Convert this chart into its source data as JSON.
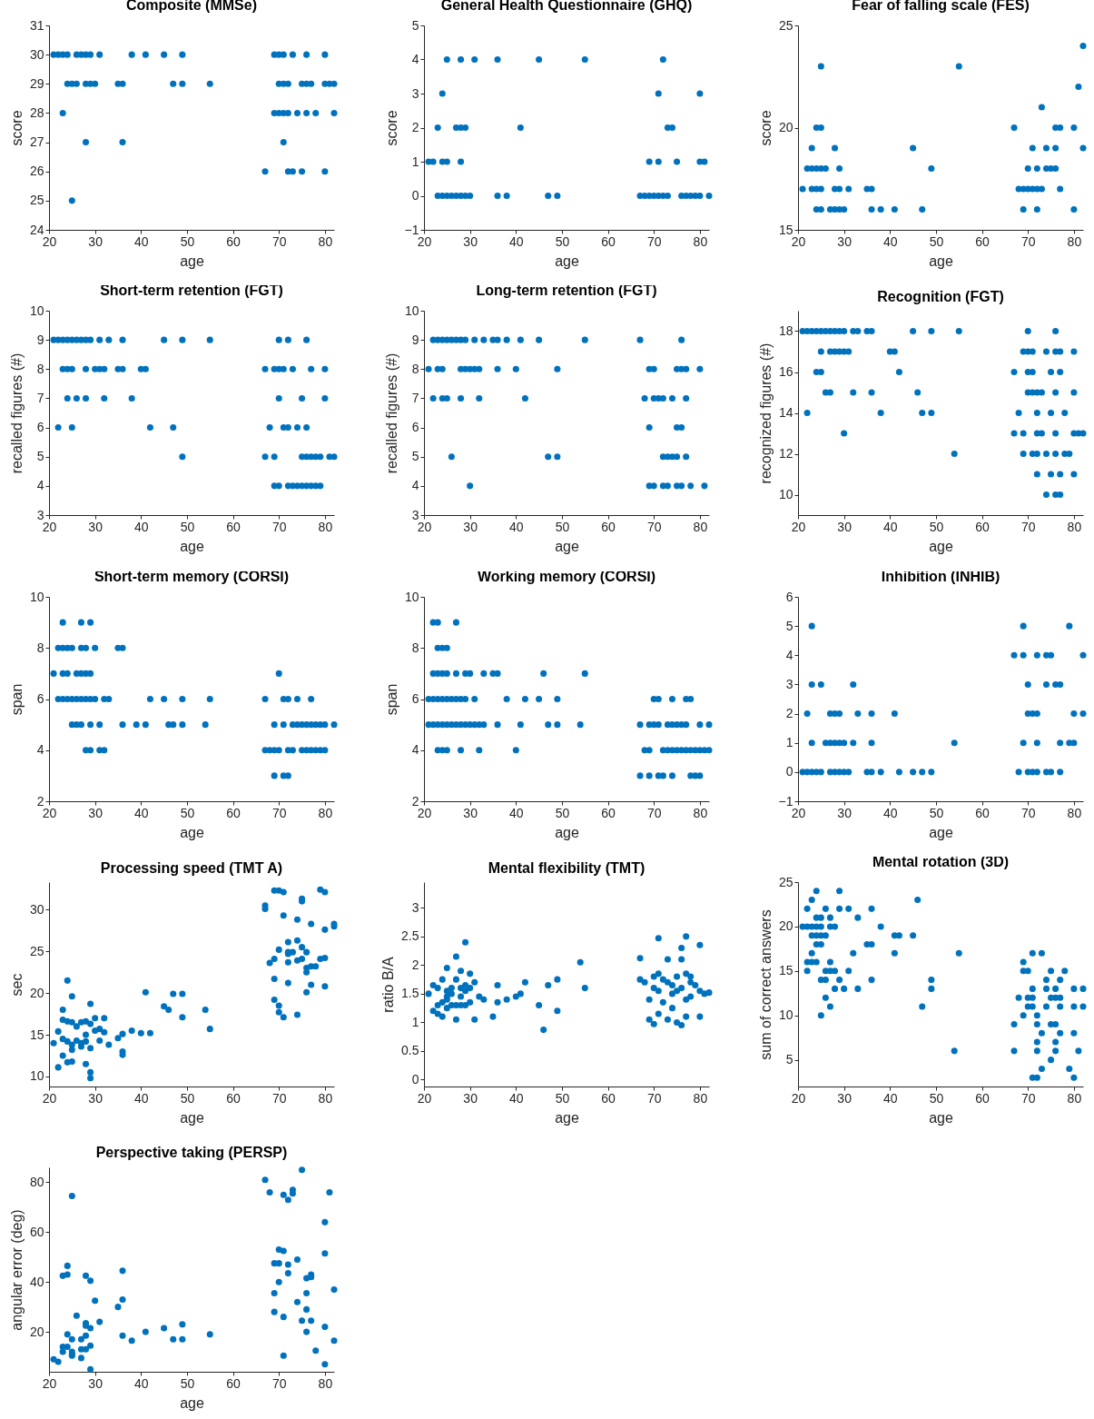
{
  "chart_data": [
    {
      "type": "scatter",
      "title": "Composite (MMSe)",
      "xlabel": "age",
      "ylabel": "score",
      "color": "#0072bd",
      "marker": "circle",
      "xlim": [
        20,
        82
      ],
      "xticks": [
        20,
        30,
        40,
        50,
        60,
        70,
        80
      ],
      "ylim": [
        24,
        31
      ],
      "yticks": [
        24,
        25,
        26,
        27,
        28,
        29,
        30,
        31
      ],
      "x": [
        21,
        22,
        23,
        24,
        26,
        27,
        28,
        29,
        31,
        38,
        41,
        45,
        49,
        69,
        70,
        71,
        73,
        76,
        80,
        24,
        25,
        26,
        28,
        29,
        30,
        35,
        36,
        47,
        49,
        55,
        70,
        71,
        72,
        75,
        76,
        77,
        80,
        81,
        82,
        23,
        69,
        70,
        71,
        72,
        74,
        76,
        78,
        82,
        28,
        36,
        71,
        67,
        72,
        73,
        75,
        80,
        25
      ],
      "values": [
        30,
        30,
        30,
        30,
        30,
        30,
        30,
        30,
        30,
        30,
        30,
        30,
        30,
        30,
        30,
        30,
        30,
        30,
        30,
        29,
        29,
        29,
        29,
        29,
        29,
        29,
        29,
        29,
        29,
        29,
        29,
        29,
        29,
        29,
        29,
        29,
        29,
        29,
        29,
        28,
        28,
        28,
        28,
        28,
        28,
        28,
        28,
        28,
        27,
        27,
        27,
        26,
        26,
        26,
        26,
        26,
        25
      ]
    },
    {
      "type": "scatter",
      "title": "General Health Questionnaire (GHQ)",
      "xlabel": "age",
      "ylabel": "score",
      "color": "#0072bd",
      "marker": "circle",
      "xlim": [
        20,
        82
      ],
      "xticks": [
        20,
        30,
        40,
        50,
        60,
        70,
        80
      ],
      "ylim": [
        -1,
        5
      ],
      "yticks": [
        -1,
        0,
        1,
        2,
        3,
        4,
        5
      ],
      "x": [
        25,
        28,
        31,
        36,
        45,
        55,
        72,
        24,
        71,
        80,
        23,
        27,
        28,
        29,
        41,
        73,
        74,
        21,
        22,
        24,
        25,
        28,
        69,
        71,
        75,
        80,
        81,
        23,
        24,
        25,
        26,
        27,
        28,
        29,
        30,
        36,
        38,
        47,
        49,
        67,
        68,
        69,
        70,
        71,
        72,
        73,
        76,
        77,
        78,
        79,
        80,
        82
      ],
      "values": [
        4,
        4,
        4,
        4,
        4,
        4,
        4,
        3,
        3,
        3,
        2,
        2,
        2,
        2,
        2,
        2,
        2,
        1,
        1,
        1,
        1,
        1,
        1,
        1,
        1,
        1,
        1,
        0,
        0,
        0,
        0,
        0,
        0,
        0,
        0,
        0,
        0,
        0,
        0,
        0,
        0,
        0,
        0,
        0,
        0,
        0,
        0,
        0,
        0,
        0,
        0,
        0
      ]
    },
    {
      "type": "scatter",
      "title": "Fear of falling scale (FES)",
      "xlabel": "age",
      "ylabel": "score",
      "color": "#0072bd",
      "marker": "circle",
      "xlim": [
        20,
        82
      ],
      "xticks": [
        20,
        30,
        40,
        50,
        60,
        70,
        80
      ],
      "ylim": [
        15,
        25
      ],
      "yticks": [
        15,
        20,
        25
      ],
      "x": [
        82,
        25,
        55,
        81,
        73,
        24,
        25,
        67,
        76,
        77,
        80,
        23,
        28,
        45,
        71,
        74,
        76,
        82,
        22,
        23,
        24,
        25,
        26,
        29,
        49,
        70,
        72,
        74,
        75,
        76,
        21,
        23,
        24,
        25,
        28,
        29,
        31,
        35,
        36,
        68,
        69,
        70,
        71,
        72,
        73,
        77,
        24,
        25,
        27,
        28,
        29,
        30,
        36,
        38,
        41,
        47,
        69,
        72,
        80
      ],
      "values": [
        24,
        23,
        23,
        22,
        21,
        20,
        20,
        20,
        20,
        20,
        20,
        19,
        19,
        19,
        19,
        19,
        19,
        19,
        18,
        18,
        18,
        18,
        18,
        18,
        18,
        18,
        18,
        18,
        18,
        18,
        17,
        17,
        17,
        17,
        17,
        17,
        17,
        17,
        17,
        17,
        17,
        17,
        17,
        17,
        17,
        17,
        16,
        16,
        16,
        16,
        16,
        16,
        16,
        16,
        16,
        16,
        16,
        16,
        16
      ]
    },
    {
      "type": "scatter",
      "title": "Short-term retention (FGT)",
      "xlabel": "age",
      "ylabel": "recalled figures (#)",
      "color": "#0072bd",
      "marker": "circle",
      "xlim": [
        20,
        82
      ],
      "xticks": [
        20,
        30,
        40,
        50,
        60,
        70,
        80
      ],
      "ylim": [
        3,
        10
      ],
      "yticks": [
        3,
        4,
        5,
        6,
        7,
        8,
        9,
        10
      ],
      "x": [
        21,
        22,
        23,
        24,
        25,
        26,
        27,
        28,
        29,
        31,
        33,
        36,
        45,
        49,
        55,
        70,
        72,
        76,
        23,
        24,
        25,
        28,
        30,
        31,
        32,
        35,
        36,
        40,
        41,
        67,
        69,
        70,
        71,
        73,
        77,
        80,
        24,
        26,
        28,
        32,
        38,
        70,
        75,
        80,
        22,
        25,
        42,
        47,
        68,
        71,
        72,
        74,
        76,
        49,
        67,
        69,
        75,
        76,
        77,
        78,
        79,
        81,
        82,
        69,
        70,
        72,
        73,
        74,
        75,
        76,
        77,
        78,
        79
      ],
      "values": [
        9,
        9,
        9,
        9,
        9,
        9,
        9,
        9,
        9,
        9,
        9,
        9,
        9,
        9,
        9,
        9,
        9,
        9,
        8,
        8,
        8,
        8,
        8,
        8,
        8,
        8,
        8,
        8,
        8,
        8,
        8,
        8,
        8,
        8,
        8,
        8,
        7,
        7,
        7,
        7,
        7,
        7,
        7,
        7,
        6,
        6,
        6,
        6,
        6,
        6,
        6,
        6,
        6,
        5,
        5,
        5,
        5,
        5,
        5,
        5,
        5,
        5,
        5,
        4,
        4,
        4,
        4,
        4,
        4,
        4,
        4,
        4,
        4
      ]
    },
    {
      "type": "scatter",
      "title": "Long-term retention (FGT)",
      "xlabel": "age",
      "ylabel": "recalled figures (#)",
      "color": "#0072bd",
      "marker": "circle",
      "xlim": [
        20,
        82
      ],
      "xticks": [
        20,
        30,
        40,
        50,
        60,
        70,
        80
      ],
      "ylim": [
        3,
        10
      ],
      "yticks": [
        3,
        4,
        5,
        6,
        7,
        8,
        9,
        10
      ],
      "x": [
        22,
        23,
        24,
        25,
        26,
        27,
        28,
        29,
        31,
        33,
        35,
        36,
        38,
        41,
        45,
        55,
        67,
        76,
        21,
        23,
        24,
        28,
        29,
        30,
        31,
        32,
        36,
        40,
        49,
        69,
        70,
        75,
        76,
        77,
        80,
        22,
        24,
        25,
        28,
        32,
        42,
        68,
        70,
        71,
        72,
        74,
        77,
        69,
        75,
        76,
        26,
        47,
        49,
        72,
        73,
        74,
        75,
        77,
        30,
        69,
        70,
        72,
        73,
        75,
        76,
        78,
        81
      ],
      "values": [
        9,
        9,
        9,
        9,
        9,
        9,
        9,
        9,
        9,
        9,
        9,
        9,
        9,
        9,
        9,
        9,
        9,
        9,
        8,
        8,
        8,
        8,
        8,
        8,
        8,
        8,
        8,
        8,
        8,
        8,
        8,
        8,
        8,
        8,
        8,
        7,
        7,
        7,
        7,
        7,
        7,
        7,
        7,
        7,
        7,
        7,
        7,
        6,
        6,
        6,
        5,
        5,
        5,
        5,
        5,
        5,
        5,
        5,
        4,
        4,
        4,
        4,
        4,
        4,
        4,
        4,
        4
      ]
    },
    {
      "type": "scatter",
      "title": "Recognition (FGT)",
      "xlabel": "age",
      "ylabel": "recognized figures (#)",
      "color": "#0072bd",
      "marker": "circle",
      "xlim": [
        20,
        82
      ],
      "xticks": [
        20,
        30,
        40,
        50,
        60,
        70,
        80
      ],
      "ylim": [
        9,
        19
      ],
      "yticks": [
        10,
        12,
        14,
        16,
        18
      ],
      "x": [
        21,
        22,
        23,
        24,
        25,
        26,
        27,
        28,
        29,
        30,
        32,
        33,
        35,
        36,
        45,
        49,
        55,
        70,
        76,
        25,
        27,
        28,
        29,
        30,
        31,
        40,
        41,
        69,
        70,
        71,
        74,
        76,
        77,
        80,
        24,
        25,
        42,
        67,
        70,
        71,
        75,
        77,
        26,
        27,
        32,
        36,
        46,
        70,
        71,
        72,
        73,
        76,
        80,
        22,
        38,
        47,
        49,
        68,
        72,
        75,
        78,
        30,
        67,
        69,
        72,
        73,
        76,
        80,
        81,
        82,
        54,
        69,
        71,
        72,
        74,
        76,
        78,
        79,
        72,
        75,
        77,
        80,
        74,
        76,
        77
      ],
      "values": [
        18,
        18,
        18,
        18,
        18,
        18,
        18,
        18,
        18,
        18,
        18,
        18,
        18,
        18,
        18,
        18,
        18,
        18,
        18,
        17,
        17,
        17,
        17,
        17,
        17,
        17,
        17,
        17,
        17,
        17,
        17,
        17,
        17,
        17,
        16,
        16,
        16,
        16,
        16,
        16,
        16,
        16,
        15,
        15,
        15,
        15,
        15,
        15,
        15,
        15,
        15,
        15,
        15,
        14,
        14,
        14,
        14,
        14,
        14,
        14,
        14,
        13,
        13,
        13,
        13,
        13,
        13,
        13,
        13,
        13,
        12,
        12,
        12,
        12,
        12,
        12,
        12,
        12,
        11,
        11,
        11,
        11,
        10,
        10,
        10
      ]
    },
    {
      "type": "scatter",
      "title": "Short-term memory (CORSI)",
      "xlabel": "age",
      "ylabel": "span",
      "color": "#0072bd",
      "marker": "circle",
      "xlim": [
        20,
        82
      ],
      "xticks": [
        20,
        30,
        40,
        50,
        60,
        70,
        80
      ],
      "ylim": [
        2,
        10
      ],
      "yticks": [
        2,
        4,
        6,
        8,
        10
      ],
      "x": [
        23,
        27,
        29,
        22,
        23,
        24,
        25,
        27,
        28,
        30,
        35,
        36,
        21,
        23,
        24,
        26,
        27,
        28,
        29,
        70,
        22,
        23,
        24,
        25,
        26,
        27,
        28,
        29,
        30,
        32,
        33,
        42,
        45,
        49,
        55,
        67,
        71,
        72,
        74,
        77,
        25,
        26,
        27,
        29,
        31,
        36,
        39,
        41,
        46,
        47,
        49,
        54,
        69,
        71,
        73,
        74,
        75,
        76,
        77,
        78,
        79,
        80,
        82,
        28,
        29,
        31,
        32,
        67,
        68,
        69,
        70,
        72,
        73,
        75,
        76,
        77,
        78,
        79,
        80,
        69,
        71,
        72
      ],
      "values": [
        9,
        9,
        9,
        8,
        8,
        8,
        8,
        8,
        8,
        8,
        8,
        8,
        7,
        7,
        7,
        7,
        7,
        7,
        7,
        7,
        6,
        6,
        6,
        6,
        6,
        6,
        6,
        6,
        6,
        6,
        6,
        6,
        6,
        6,
        6,
        6,
        6,
        6,
        6,
        6,
        5,
        5,
        5,
        5,
        5,
        5,
        5,
        5,
        5,
        5,
        5,
        5,
        5,
        5,
        5,
        5,
        5,
        5,
        5,
        5,
        5,
        5,
        5,
        4,
        4,
        4,
        4,
        4,
        4,
        4,
        4,
        4,
        4,
        4,
        4,
        4,
        4,
        4,
        4,
        3,
        3,
        3
      ]
    },
    {
      "type": "scatter",
      "title": "Working memory (CORSI)",
      "xlabel": "age",
      "ylabel": "span",
      "color": "#0072bd",
      "marker": "circle",
      "xlim": [
        20,
        82
      ],
      "xticks": [
        20,
        30,
        40,
        50,
        60,
        70,
        80
      ],
      "ylim": [
        2,
        10
      ],
      "yticks": [
        2,
        4,
        6,
        8,
        10
      ],
      "x": [
        22,
        23,
        27,
        23,
        24,
        25,
        22,
        23,
        24,
        25,
        27,
        29,
        30,
        33,
        35,
        36,
        46,
        55,
        21,
        22,
        23,
        24,
        25,
        26,
        27,
        28,
        29,
        31,
        38,
        42,
        45,
        49,
        70,
        71,
        74,
        77,
        78,
        21,
        22,
        23,
        24,
        25,
        26,
        27,
        28,
        29,
        30,
        31,
        32,
        33,
        36,
        41,
        47,
        49,
        54,
        67,
        69,
        70,
        71,
        73,
        74,
        75,
        76,
        77,
        80,
        82,
        23,
        24,
        25,
        28,
        32,
        40,
        68,
        69,
        72,
        73,
        74,
        75,
        76,
        77,
        78,
        79,
        80,
        81,
        82,
        67,
        69,
        71,
        72,
        74,
        78,
        79,
        80
      ],
      "values": [
        9,
        9,
        9,
        8,
        8,
        8,
        7,
        7,
        7,
        7,
        7,
        7,
        7,
        7,
        7,
        7,
        7,
        7,
        6,
        6,
        6,
        6,
        6,
        6,
        6,
        6,
        6,
        6,
        6,
        6,
        6,
        6,
        6,
        6,
        6,
        6,
        6,
        5,
        5,
        5,
        5,
        5,
        5,
        5,
        5,
        5,
        5,
        5,
        5,
        5,
        5,
        5,
        5,
        5,
        5,
        5,
        5,
        5,
        5,
        5,
        5,
        5,
        5,
        5,
        5,
        5,
        4,
        4,
        4,
        4,
        4,
        4,
        4,
        4,
        4,
        4,
        4,
        4,
        4,
        4,
        4,
        4,
        4,
        4,
        4,
        3,
        3,
        3,
        3,
        3,
        3,
        3,
        3
      ]
    },
    {
      "type": "scatter",
      "title": "Inhibition (INHIB)",
      "xlabel": "age",
      "color": "#0072bd",
      "marker": "circle",
      "xlim": [
        20,
        82
      ],
      "xticks": [
        20,
        30,
        40,
        50,
        60,
        70,
        80
      ],
      "ylim": [
        -1,
        6
      ],
      "yticks": [
        -1,
        0,
        1,
        2,
        3,
        4,
        5,
        6
      ],
      "x": [
        23,
        69,
        79,
        67,
        69,
        72,
        74,
        75,
        82,
        23,
        25,
        32,
        70,
        74,
        76,
        77,
        22,
        27,
        28,
        29,
        33,
        36,
        41,
        70,
        71,
        72,
        80,
        82,
        23,
        26,
        27,
        28,
        29,
        30,
        32,
        36,
        54,
        69,
        72,
        77,
        79,
        80,
        21,
        22,
        23,
        24,
        25,
        27,
        28,
        29,
        30,
        31,
        35,
        36,
        38,
        42,
        45,
        47,
        49,
        68,
        70,
        71,
        72,
        74,
        75,
        77
      ],
      "values": [
        5,
        5,
        5,
        4,
        4,
        4,
        4,
        4,
        4,
        3,
        3,
        3,
        3,
        3,
        3,
        3,
        2,
        2,
        2,
        2,
        2,
        2,
        2,
        2,
        2,
        2,
        2,
        2,
        1,
        1,
        1,
        1,
        1,
        1,
        1,
        1,
        1,
        1,
        1,
        1,
        1,
        1,
        0,
        0,
        0,
        0,
        0,
        0,
        0,
        0,
        0,
        0,
        0,
        0,
        0,
        0,
        0,
        0,
        0,
        0,
        0,
        0,
        0,
        0,
        0,
        0
      ]
    },
    {
      "type": "scatter",
      "title": "Processing speed (TMT A)",
      "xlabel": "age",
      "ylabel": "sec",
      "color": "#0072bd",
      "marker": "circle",
      "xlim": [
        20,
        82
      ],
      "xticks": [
        20,
        30,
        40,
        50,
        60,
        70,
        80
      ],
      "ylim": [
        8.8,
        33.3
      ],
      "yticks": [
        10,
        15,
        20,
        25,
        30
      ],
      "x": [
        21,
        22,
        22,
        23,
        23,
        23,
        23,
        24,
        24,
        24,
        24,
        25,
        25,
        25,
        25,
        25,
        26,
        26,
        27,
        27,
        27,
        28,
        28,
        28,
        28,
        29,
        29,
        29,
        29,
        29,
        30,
        30,
        31,
        31,
        32,
        32,
        33,
        35,
        36,
        36,
        36,
        38,
        40,
        41,
        42,
        45,
        46,
        47,
        49,
        49,
        54,
        55,
        67,
        67,
        68,
        69,
        69,
        69,
        69,
        70,
        70,
        70,
        70,
        71,
        71,
        71,
        72,
        72,
        72,
        72,
        72,
        73,
        74,
        74,
        74,
        74,
        75,
        75,
        75,
        75,
        76,
        76,
        76,
        76,
        77,
        77,
        77,
        78,
        79,
        79,
        80,
        80,
        80,
        80,
        82,
        82
      ],
      "values": [
        14,
        15.4,
        11.1,
        18,
        16.8,
        14.5,
        12.5,
        21.5,
        16.6,
        14.2,
        11.7,
        19.6,
        16.5,
        13.8,
        13.2,
        11.8,
        16,
        14.3,
        16.5,
        14,
        13.6,
        16.6,
        15,
        11.5,
        14.2,
        18.7,
        16.3,
        13.4,
        10.5,
        9.8,
        17,
        15.5,
        15.7,
        14.3,
        17,
        15.3,
        13.8,
        14.6,
        15.1,
        13,
        12.6,
        15.5,
        15.2,
        20.1,
        15.2,
        18.4,
        18,
        19.9,
        19.9,
        17.1,
        18,
        15.7,
        30.5,
        30.1,
        23.6,
        32.3,
        24.1,
        21.7,
        19.2,
        32.3,
        25.2,
        18.5,
        17.7,
        32.1,
        29.3,
        17.1,
        26.1,
        24.9,
        24.7,
        23.7,
        21.2,
        24.9,
        28.8,
        26.3,
        23.9,
        17.4,
        31.3,
        31,
        25.5,
        24.1,
        24.9,
        23,
        22.5,
        20.1,
        28.3,
        23.2,
        21,
        23.2,
        32.4,
        24.1,
        32.1,
        27.6,
        24.2,
        20.8,
        28.3,
        28
      ]
    },
    {
      "type": "scatter",
      "title": "Mental flexibility (TMT)",
      "xlabel": "age",
      "ylabel": "ratio B/A",
      "color": "#0072bd",
      "marker": "circle",
      "xlim": [
        20,
        82
      ],
      "xticks": [
        20,
        30,
        40,
        50,
        60,
        70,
        80
      ],
      "ylim": [
        -0.12,
        3.45
      ],
      "yticks": [
        0,
        0.5,
        1,
        1.5,
        2,
        2.5,
        3
      ],
      "x": [
        21,
        22,
        22,
        23,
        23,
        23,
        24,
        24,
        24,
        25,
        25,
        25,
        25,
        25,
        26,
        26,
        26,
        27,
        27,
        27,
        27,
        28,
        28,
        28,
        28,
        29,
        29,
        29,
        29,
        30,
        30,
        30,
        31,
        31,
        32,
        33,
        35,
        36,
        36,
        38,
        40,
        41,
        42,
        45,
        46,
        47,
        49,
        49,
        54,
        55,
        67,
        67,
        68,
        69,
        69,
        70,
        70,
        70,
        71,
        71,
        71,
        71,
        72,
        72,
        73,
        73,
        73,
        74,
        74,
        74,
        75,
        75,
        75,
        76,
        76,
        76,
        76,
        77,
        77,
        77,
        77,
        78,
        78,
        78,
        79,
        80,
        80,
        80,
        81,
        82
      ],
      "values": [
        1.5,
        1.65,
        1.2,
        1.15,
        1.6,
        1.3,
        1.75,
        1.35,
        1.1,
        1.95,
        1.55,
        1.45,
        1.4,
        1.25,
        1.6,
        1.3,
        1.5,
        2.15,
        1.75,
        1.3,
        1.05,
        1.9,
        1.6,
        1.45,
        1.3,
        2.4,
        1.65,
        1.55,
        1.3,
        1.85,
        1.6,
        1.35,
        1.7,
        1.05,
        1.45,
        1.4,
        1.1,
        1.65,
        1.35,
        1.4,
        1.45,
        1.5,
        1.7,
        1.3,
        0.87,
        1.65,
        1.75,
        1.2,
        2.05,
        1.6,
        2.12,
        1.75,
        1.7,
        1.4,
        1.05,
        1.8,
        1.6,
        0.97,
        2.47,
        1.85,
        1.55,
        1.15,
        1.75,
        1.35,
        2.1,
        1.7,
        1.05,
        1.65,
        1.5,
        1.25,
        1.8,
        1.55,
        1,
        2.3,
        2.1,
        1.6,
        0.95,
        2.5,
        1.85,
        1.4,
        1.1,
        1.8,
        1.7,
        1.45,
        1.65,
        2.35,
        1.55,
        1.1,
        1.5,
        1.52
      ]
    },
    {
      "type": "scatter",
      "title": "Mental rotation (3D)",
      "xlabel": "age",
      "ylabel": "sum of correct answers",
      "color": "#0072bd",
      "marker": "circle",
      "xlim": [
        20,
        82
      ],
      "xticks": [
        20,
        30,
        40,
        50,
        60,
        70,
        80
      ],
      "ylim": [
        2,
        25
      ],
      "yticks": [
        5,
        10,
        15,
        20,
        25
      ],
      "x": [
        24,
        29,
        23,
        46,
        22,
        26,
        29,
        31,
        36,
        24,
        25,
        27,
        33,
        21,
        22,
        23,
        24,
        25,
        27,
        28,
        38,
        23,
        24,
        25,
        26,
        41,
        42,
        45,
        24,
        25,
        35,
        36,
        23,
        32,
        41,
        55,
        71,
        73,
        22,
        23,
        24,
        27,
        69,
        22,
        26,
        27,
        28,
        31,
        69,
        70,
        75,
        78,
        25,
        26,
        29,
        36,
        49,
        74,
        77,
        28,
        30,
        33,
        49,
        71,
        74,
        76,
        80,
        82,
        26,
        68,
        70,
        71,
        75,
        76,
        77,
        27,
        47,
        70,
        71,
        74,
        77,
        80,
        82,
        25,
        69,
        72,
        67,
        72,
        75,
        76,
        73,
        77,
        80,
        72,
        76,
        54,
        67,
        72,
        76,
        81,
        75,
        73,
        79,
        71,
        72,
        80
      ],
      "values": [
        24,
        24,
        23,
        23,
        22,
        22,
        22,
        22,
        22,
        21,
        21,
        21,
        21,
        20,
        20,
        20,
        20,
        20,
        20,
        20,
        20,
        19,
        19,
        19,
        19,
        19,
        19,
        19,
        18,
        18,
        18,
        18,
        17,
        17,
        17,
        17,
        17,
        17,
        16,
        16,
        16,
        16,
        16,
        15,
        15,
        15,
        15,
        15,
        15,
        15,
        15,
        15,
        14,
        14,
        14,
        14,
        14,
        14,
        14,
        13,
        13,
        13,
        13,
        13,
        13,
        13,
        13,
        13,
        12,
        12,
        12,
        12,
        12,
        12,
        12,
        11,
        11,
        11,
        11,
        11,
        11,
        11,
        11,
        10,
        10,
        10,
        9,
        9,
        9,
        9,
        8,
        8,
        8,
        7,
        7,
        6,
        6,
        6,
        6,
        6,
        5,
        4,
        4,
        3,
        3,
        3
      ]
    },
    {
      "type": "scatter",
      "title": "Perspective taking (PERSP)",
      "xlabel": "age",
      "ylabel": "angular error (deg)",
      "color": "#0072bd",
      "marker": "circle",
      "xlim": [
        20,
        82
      ],
      "xticks": [
        20,
        30,
        40,
        50,
        60,
        70,
        80
      ],
      "ylim": [
        4,
        86
      ],
      "yticks": [
        20,
        40,
        60,
        80
      ],
      "x": [
        21,
        22,
        23,
        23,
        23,
        24,
        24,
        24,
        24,
        25,
        25,
        25,
        25,
        25,
        26,
        27,
        27,
        27,
        28,
        28,
        28,
        28,
        28,
        29,
        29,
        29,
        29,
        30,
        31,
        35,
        36,
        36,
        36,
        38,
        41,
        45,
        47,
        49,
        49,
        55,
        67,
        68,
        69,
        69,
        69,
        70,
        70,
        70,
        71,
        71,
        71,
        71,
        72,
        72,
        72,
        73,
        73,
        74,
        74,
        75,
        75,
        76,
        76,
        76,
        76,
        77,
        77,
        77,
        78,
        80,
        80,
        80,
        80,
        81,
        82,
        82
      ],
      "values": [
        9,
        8,
        42.5,
        14,
        12,
        46.5,
        43,
        19,
        14,
        74.5,
        17,
        12,
        11,
        10.5,
        26.5,
        17,
        13,
        9.5,
        42.5,
        23.5,
        22.5,
        18.5,
        13,
        40.5,
        21.5,
        14.5,
        5,
        32.5,
        24,
        30,
        44.5,
        33,
        18.5,
        16.5,
        20,
        21.5,
        17,
        23,
        17,
        19,
        81,
        76,
        47.5,
        35.5,
        28,
        53,
        47.5,
        40,
        75,
        52.5,
        26,
        10.5,
        73,
        47,
        43.5,
        77,
        75.5,
        49,
        32,
        85,
        24.5,
        41.5,
        35.5,
        29,
        20,
        43,
        42,
        24.5,
        12.5,
        64,
        51.5,
        22,
        7,
        76,
        37,
        16.5
      ]
    }
  ]
}
